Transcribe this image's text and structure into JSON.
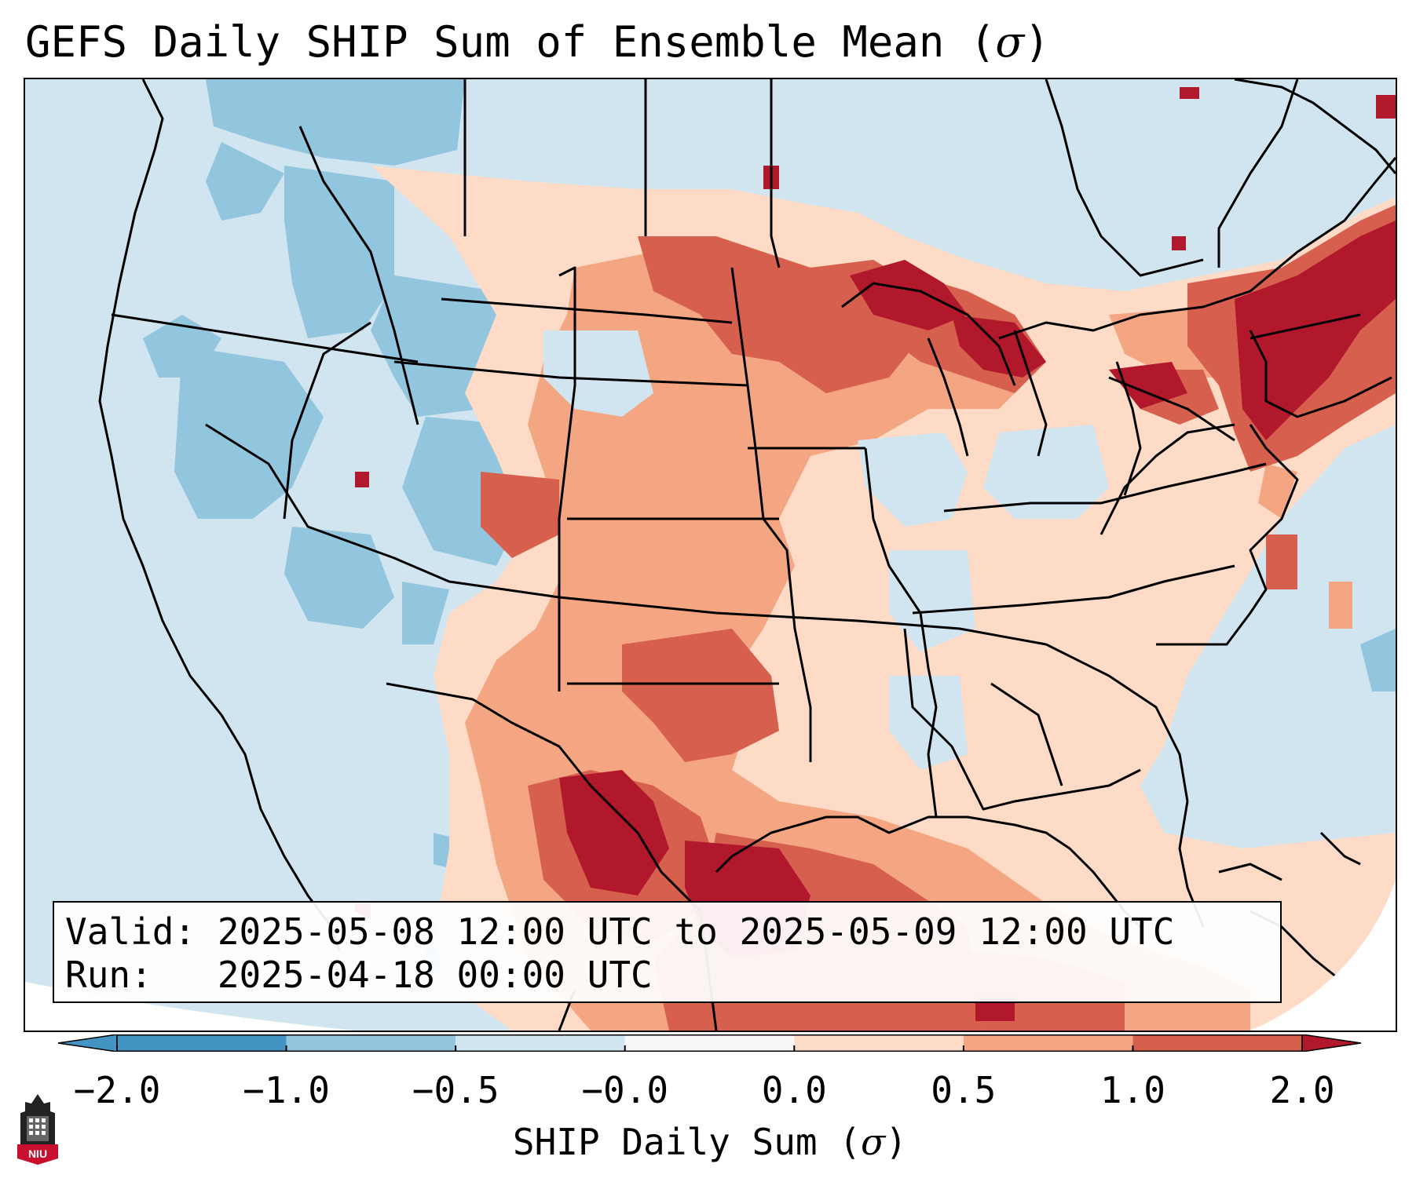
{
  "title_main": "GEFS Daily SHIP Sum of Ensemble Mean (",
  "title_sigma": "σ",
  "title_close": ")",
  "valid_line": "Valid: 2025-05-08 12:00 UTC to 2025-05-09 12:00 UTC",
  "run_line": "Run:   2025-04-18 00:00 UTC",
  "colorbar": {
    "label_main": "SHIP Daily Sum (",
    "label_sigma": "σ",
    "label_close": ")",
    "ticks": [
      "−2.0",
      "−1.0",
      "−0.5",
      "−0.0",
      "0.0",
      "0.5",
      "1.0",
      "2.0"
    ],
    "colors": [
      "#4393c3",
      "#92c5de",
      "#d1e5f0",
      "#f7f7f7",
      "#fddbc7",
      "#f4a582",
      "#d6604d",
      "#b2182b"
    ],
    "extend": "both"
  },
  "logo": {
    "text": "NIU",
    "icon": "university-tower-icon"
  },
  "map": {
    "region": "Continental United States",
    "ocean_color": "#d1e5f0",
    "coastline_color": "#000000"
  }
}
